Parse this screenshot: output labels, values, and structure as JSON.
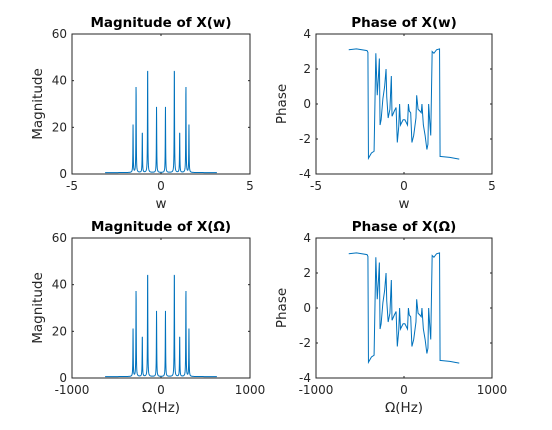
{
  "chart_data": [
    {
      "type": "line",
      "title": "Magnitude of X(w)",
      "xlabel": "w",
      "ylabel": "Magnitude",
      "xlim": [
        -5,
        5
      ],
      "ylim": [
        0,
        60
      ],
      "xticks": [
        "-5",
        "0",
        "5"
      ],
      "yticks": [
        "0",
        "20",
        "40",
        "60"
      ],
      "grid": false,
      "color": "#0072BD",
      "kind": "magnitude",
      "x_range": [
        -3.14,
        3.14
      ],
      "baseline": 0.6,
      "peaks": [
        {
          "x": -1.57,
          "y": 21
        },
        {
          "x": -1.4,
          "y": 39
        },
        {
          "x": -1.05,
          "y": 19
        },
        {
          "x": -0.75,
          "y": 48
        },
        {
          "x": -0.25,
          "y": 29
        },
        {
          "x": 0.25,
          "y": 29
        },
        {
          "x": 0.75,
          "y": 48
        },
        {
          "x": 1.05,
          "y": 19
        },
        {
          "x": 1.4,
          "y": 39
        },
        {
          "x": 1.57,
          "y": 21
        }
      ]
    },
    {
      "type": "line",
      "title": "Phase of X(w)",
      "xlabel": "w",
      "ylabel": "Phase",
      "xlim": [
        -5,
        5
      ],
      "ylim": [
        -4,
        4
      ],
      "xticks": [
        "-5",
        "0",
        "5"
      ],
      "yticks": [
        "-4",
        "-2",
        "0",
        "2",
        "4"
      ],
      "grid": false,
      "color": "#0072BD",
      "kind": "phase",
      "points": [
        [
          -3.14,
          3.1
        ],
        [
          -2.7,
          3.15
        ],
        [
          -2.1,
          3.05
        ],
        [
          -2.05,
          2.95
        ],
        [
          -2.02,
          -3.1
        ],
        [
          -1.85,
          -2.8
        ],
        [
          -1.7,
          -2.7
        ],
        [
          -1.6,
          2.9
        ],
        [
          -1.52,
          0.5
        ],
        [
          -1.45,
          1.6
        ],
        [
          -1.4,
          2.6
        ],
        [
          -1.36,
          -1.2
        ],
        [
          -1.3,
          -0.9
        ],
        [
          -1.2,
          0.3
        ],
        [
          -1.1,
          1.0
        ],
        [
          -1.02,
          2.0
        ],
        [
          -0.98,
          0.4
        ],
        [
          -0.9,
          -0.8
        ],
        [
          -0.8,
          -0.3
        ],
        [
          -0.72,
          1.6
        ],
        [
          -0.68,
          -0.7
        ],
        [
          -0.55,
          -0.4
        ],
        [
          -0.45,
          -0.2
        ],
        [
          -0.38,
          -2.2
        ],
        [
          -0.3,
          -1.3
        ],
        [
          -0.25,
          0.0
        ],
        [
          -0.2,
          -1.2
        ],
        [
          -0.05,
          -0.9
        ],
        [
          0.05,
          -0.9
        ],
        [
          0.2,
          -1.2
        ],
        [
          0.25,
          0.0
        ],
        [
          0.3,
          -0.4
        ],
        [
          0.38,
          -0.5
        ],
        [
          0.45,
          -2.2
        ],
        [
          0.55,
          -1.8
        ],
        [
          0.68,
          -0.8
        ],
        [
          0.72,
          0.5
        ],
        [
          0.8,
          -0.3
        ],
        [
          0.9,
          -0.4
        ],
        [
          0.98,
          -0.5
        ],
        [
          1.02,
          0.0
        ],
        [
          1.1,
          -1.2
        ],
        [
          1.2,
          -1.8
        ],
        [
          1.3,
          -2.6
        ],
        [
          1.36,
          -2.3
        ],
        [
          1.4,
          0.0
        ],
        [
          1.45,
          -0.8
        ],
        [
          1.52,
          -1.8
        ],
        [
          1.6,
          3.0
        ],
        [
          1.7,
          2.9
        ],
        [
          1.85,
          3.1
        ],
        [
          2.02,
          3.15
        ],
        [
          2.05,
          -3.0
        ],
        [
          2.1,
          -3.0
        ],
        [
          2.6,
          -3.05
        ],
        [
          3.14,
          -3.15
        ]
      ]
    },
    {
      "type": "line",
      "title": "Magnitude of X(Ω)",
      "xlabel": "Ω(Hz)",
      "ylabel": "Magnitude",
      "xlim": [
        -1000,
        1000
      ],
      "ylim": [
        0,
        60
      ],
      "xticks": [
        "-1000",
        "0",
        "1000"
      ],
      "yticks": [
        "0",
        "20",
        "40",
        "60"
      ],
      "grid": false,
      "color": "#0072BD",
      "kind": "magnitude",
      "x_range": [
        -628,
        628
      ],
      "baseline": 0.6,
      "peaks": [
        {
          "x": -314,
          "y": 21
        },
        {
          "x": -280,
          "y": 39
        },
        {
          "x": -210,
          "y": 19
        },
        {
          "x": -150,
          "y": 48
        },
        {
          "x": -50,
          "y": 29
        },
        {
          "x": 50,
          "y": 29
        },
        {
          "x": 150,
          "y": 48
        },
        {
          "x": 210,
          "y": 19
        },
        {
          "x": 280,
          "y": 39
        },
        {
          "x": 314,
          "y": 21
        }
      ]
    },
    {
      "type": "line",
      "title": "Phase of X(Ω)",
      "xlabel": "Ω(Hz)",
      "ylabel": "Phase",
      "xlim": [
        -1000,
        1000
      ],
      "ylim": [
        -4,
        4
      ],
      "xticks": [
        "-1000",
        "0",
        "1000"
      ],
      "yticks": [
        "-4",
        "-2",
        "0",
        "2",
        "4"
      ],
      "grid": false,
      "color": "#0072BD",
      "kind": "phase",
      "points": [
        [
          -628,
          3.1
        ],
        [
          -540,
          3.15
        ],
        [
          -420,
          3.05
        ],
        [
          -410,
          2.95
        ],
        [
          -404,
          -3.1
        ],
        [
          -370,
          -2.8
        ],
        [
          -340,
          -2.7
        ],
        [
          -320,
          2.9
        ],
        [
          -304,
          0.5
        ],
        [
          -290,
          1.6
        ],
        [
          -280,
          2.6
        ],
        [
          -272,
          -1.2
        ],
        [
          -260,
          -0.9
        ],
        [
          -240,
          0.3
        ],
        [
          -220,
          1.0
        ],
        [
          -204,
          2.0
        ],
        [
          -196,
          0.4
        ],
        [
          -180,
          -0.8
        ],
        [
          -160,
          -0.3
        ],
        [
          -144,
          1.6
        ],
        [
          -136,
          -0.7
        ],
        [
          -110,
          -0.4
        ],
        [
          -90,
          -0.2
        ],
        [
          -76,
          -2.2
        ],
        [
          -60,
          -1.3
        ],
        [
          -50,
          0.0
        ],
        [
          -40,
          -1.2
        ],
        [
          -10,
          -0.9
        ],
        [
          10,
          -0.9
        ],
        [
          40,
          -1.2
        ],
        [
          50,
          0.0
        ],
        [
          60,
          -0.4
        ],
        [
          76,
          -0.5
        ],
        [
          90,
          -2.2
        ],
        [
          110,
          -1.8
        ],
        [
          136,
          -0.8
        ],
        [
          144,
          0.5
        ],
        [
          160,
          -0.3
        ],
        [
          180,
          -0.4
        ],
        [
          196,
          -0.5
        ],
        [
          204,
          0.0
        ],
        [
          220,
          -1.2
        ],
        [
          240,
          -1.8
        ],
        [
          260,
          -2.6
        ],
        [
          272,
          -2.3
        ],
        [
          280,
          0.0
        ],
        [
          290,
          -0.8
        ],
        [
          304,
          -1.8
        ],
        [
          320,
          3.0
        ],
        [
          340,
          2.9
        ],
        [
          370,
          3.1
        ],
        [
          404,
          3.15
        ],
        [
          410,
          -3.0
        ],
        [
          420,
          -3.0
        ],
        [
          520,
          -3.05
        ],
        [
          628,
          -3.15
        ]
      ]
    }
  ]
}
